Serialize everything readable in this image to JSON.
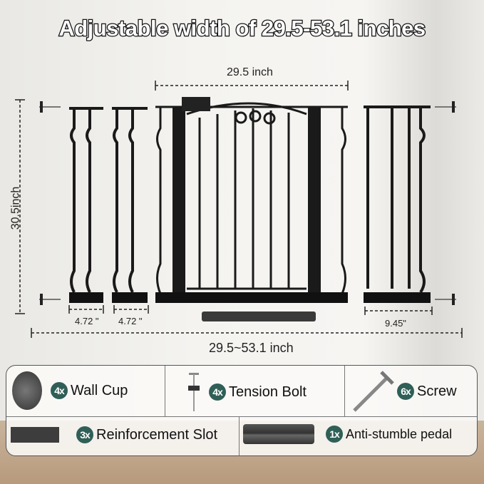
{
  "title": "Adjustable width of 29.5-53.1 inches",
  "dimensions": {
    "gate_width": "29.5 inch",
    "height": "30.5inch",
    "ext_small_1": "4.72 \"",
    "ext_small_2": "4.72 \"",
    "ext_large": "9.45\"",
    "total_range": "29.5~53.1 inch"
  },
  "accessories": [
    {
      "qty": "4x",
      "name": "Wall Cup",
      "icon": "wall-cup-icon"
    },
    {
      "qty": "4x",
      "name": "Tension Bolt",
      "icon": "tension-bolt-icon"
    },
    {
      "qty": "6x",
      "name": "Screw",
      "icon": "screw-icon"
    },
    {
      "qty": "3x",
      "name": "Reinforcement Slot",
      "icon": "reinforcement-slot-icon"
    },
    {
      "qty": "1x",
      "name": "Anti-stumble pedal",
      "icon": "pedal-icon"
    }
  ],
  "colors": {
    "badge": "#2f5f57",
    "gate": "#1a1a1a"
  }
}
